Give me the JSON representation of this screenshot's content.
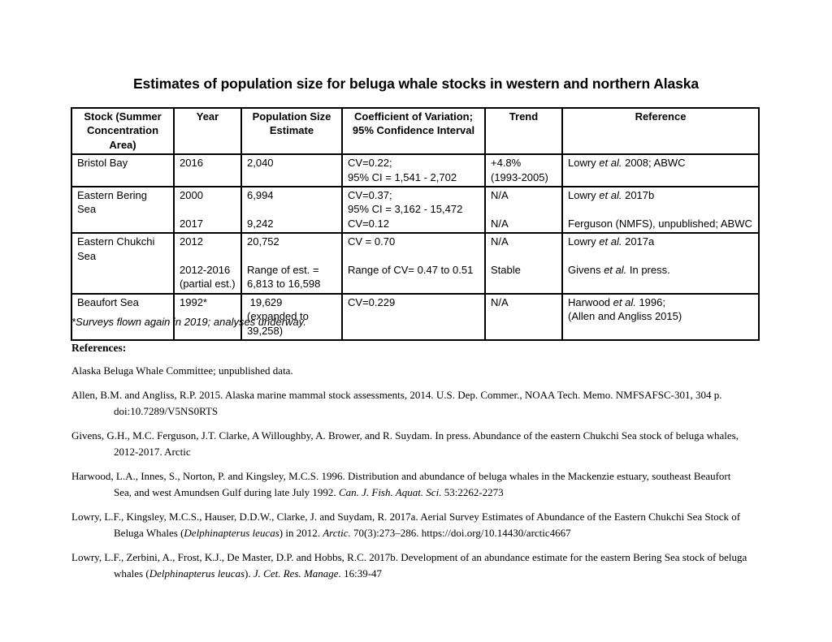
{
  "colors": {
    "background": "#ffffff",
    "text": "#000000",
    "table_border": "#000000"
  },
  "page": {
    "title": "Estimates of population size for beluga whale stocks in western and northern Alaska"
  },
  "table": {
    "headers": [
      [
        [
          "Stock (Summer"
        ],
        [
          "Concentration Area)"
        ]
      ],
      [
        [
          "Year"
        ]
      ],
      [
        [
          "Population Size"
        ],
        [
          "Estimate"
        ]
      ],
      [
        [
          "Coefficient of Variation;"
        ],
        [
          "95% Confidence Interval"
        ]
      ],
      [
        [
          "Trend"
        ]
      ],
      [
        [
          "Reference"
        ]
      ]
    ],
    "rows": [
      {
        "stock": [
          [
            "Bristol Bay"
          ]
        ],
        "year": [
          [
            "2016"
          ]
        ],
        "population": [
          [
            "2,040"
          ]
        ],
        "cv": [
          [
            "CV=0.22;"
          ],
          [
            "95% CI = 1,541 - 2,702"
          ]
        ],
        "trend": [
          [
            "+4.8%"
          ],
          [
            "(1993-2005)"
          ]
        ],
        "reference": [
          [
            "Lowry ",
            {
              "i": "et al."
            },
            " 2008; ABWC"
          ]
        ]
      },
      {
        "stock": [
          [
            "Eastern Bering Sea"
          ]
        ],
        "year": [
          [
            "2000"
          ],
          [
            ""
          ],
          [
            "2017"
          ]
        ],
        "population": [
          [
            "6,994"
          ],
          [
            ""
          ],
          [
            "9,242"
          ]
        ],
        "cv": [
          [
            "CV=0.37;"
          ],
          [
            "95% CI = 3,162 - 15,472"
          ],
          [
            "CV=0.12"
          ]
        ],
        "trend": [
          [
            "N/A"
          ],
          [
            ""
          ],
          [
            "N/A"
          ]
        ],
        "reference": [
          [
            "Lowry ",
            {
              "i": "et al."
            },
            " 2017b"
          ],
          [
            ""
          ],
          [
            "Ferguson (NMFS), unpublished; ABWC"
          ]
        ]
      },
      {
        "stock": [
          [
            "Eastern Chukchi"
          ],
          [
            "Sea"
          ]
        ],
        "year": [
          [
            "2012"
          ],
          [
            ""
          ],
          [
            "2012-2016"
          ],
          [
            "(partial est.)"
          ]
        ],
        "population": [
          [
            "20,752"
          ],
          [
            ""
          ],
          [
            "Range of est. ="
          ],
          [
            "6,813 to 16,598"
          ]
        ],
        "cv": [
          [
            "CV = 0.70"
          ],
          [
            ""
          ],
          [
            "Range of CV= 0.47 to 0.51"
          ]
        ],
        "trend": [
          [
            "N/A"
          ],
          [
            ""
          ],
          [
            "Stable"
          ]
        ],
        "reference": [
          [
            "Lowry ",
            {
              "i": "et al."
            },
            " 2017a"
          ],
          [
            ""
          ],
          [
            "Givens ",
            {
              "i": "et al."
            },
            " In press."
          ]
        ]
      },
      {
        "stock": [
          [
            "Beaufort Sea"
          ]
        ],
        "year": [
          [
            "1992*"
          ]
        ],
        "population": [
          [
            " 19,629"
          ],
          [
            "(expanded to"
          ],
          [
            "39,258)"
          ]
        ],
        "cv": [
          [
            "CV=0.229"
          ]
        ],
        "trend": [
          [
            "N/A"
          ]
        ],
        "reference": [
          [
            "Harwood ",
            {
              "i": "et al."
            },
            " 1996;"
          ],
          [
            "(Allen and Angliss 2015)"
          ]
        ]
      }
    ]
  },
  "footnote": "*Surveys flown again in 2019; analyses underway.",
  "references": {
    "heading": "References:",
    "items": [
      [
        [
          "Alaska Beluga Whale Committee; unpublished data."
        ]
      ],
      [
        [
          "Allen, B.M. and Angliss, R.P. 2015. Alaska marine mammal stock assessments, 2014. U.S. Dep. Commer., NOAA Tech. Memo. NMFSAFSC-301, 304 p."
        ],
        [
          "doi:10.7289/V5NS0RTS"
        ]
      ],
      [
        [
          "Givens, G.H., M.C. Ferguson, J.T. Clarke, A Willoughby, A. Brower, and R. Suydam. In press. Abundance of the eastern Chukchi Sea stock of beluga whales,"
        ],
        [
          "2012-2017. Arctic"
        ]
      ],
      [
        [
          "Harwood, L.A., Innes, S., Norton, P. and Kingsley, M.C.S. 1996.  Distribution and abundance of beluga whales in the Mackenzie estuary, southeast Beaufort"
        ],
        [
          "Sea, and west Amundsen Gulf during late July 1992. ",
          {
            "i": "Can. J. Fish. Aquat. Sci."
          },
          " 53:2262-2273"
        ]
      ],
      [
        [
          "Lowry, L.F., Kingsley, M.C.S., Hauser, D.D.W., Clarke, J. and Suydam, R. 2017a. Aerial Survey Estimates of Abundance of the Eastern Chukchi Sea Stock of"
        ],
        [
          "Beluga Whales (",
          {
            "i": "Delphinapterus leucas"
          },
          ") in 2012. ",
          {
            "i": "Arctic."
          },
          " 70(3):273–286. https://doi.org/10.14430/arctic4667"
        ]
      ],
      [
        [
          "Lowry, L.F., Zerbini, A., Frost, K.J., De Master, D.P. and Hobbs, R.C. 2017b.  Development of an abundance estimate for the eastern Bering Sea stock of beluga"
        ],
        [
          "whales (",
          {
            "i": "Delphinapterus leucas"
          },
          "). ",
          {
            "i": "J. Cet. Res. Manage."
          },
          " 16:39-47"
        ]
      ]
    ]
  }
}
